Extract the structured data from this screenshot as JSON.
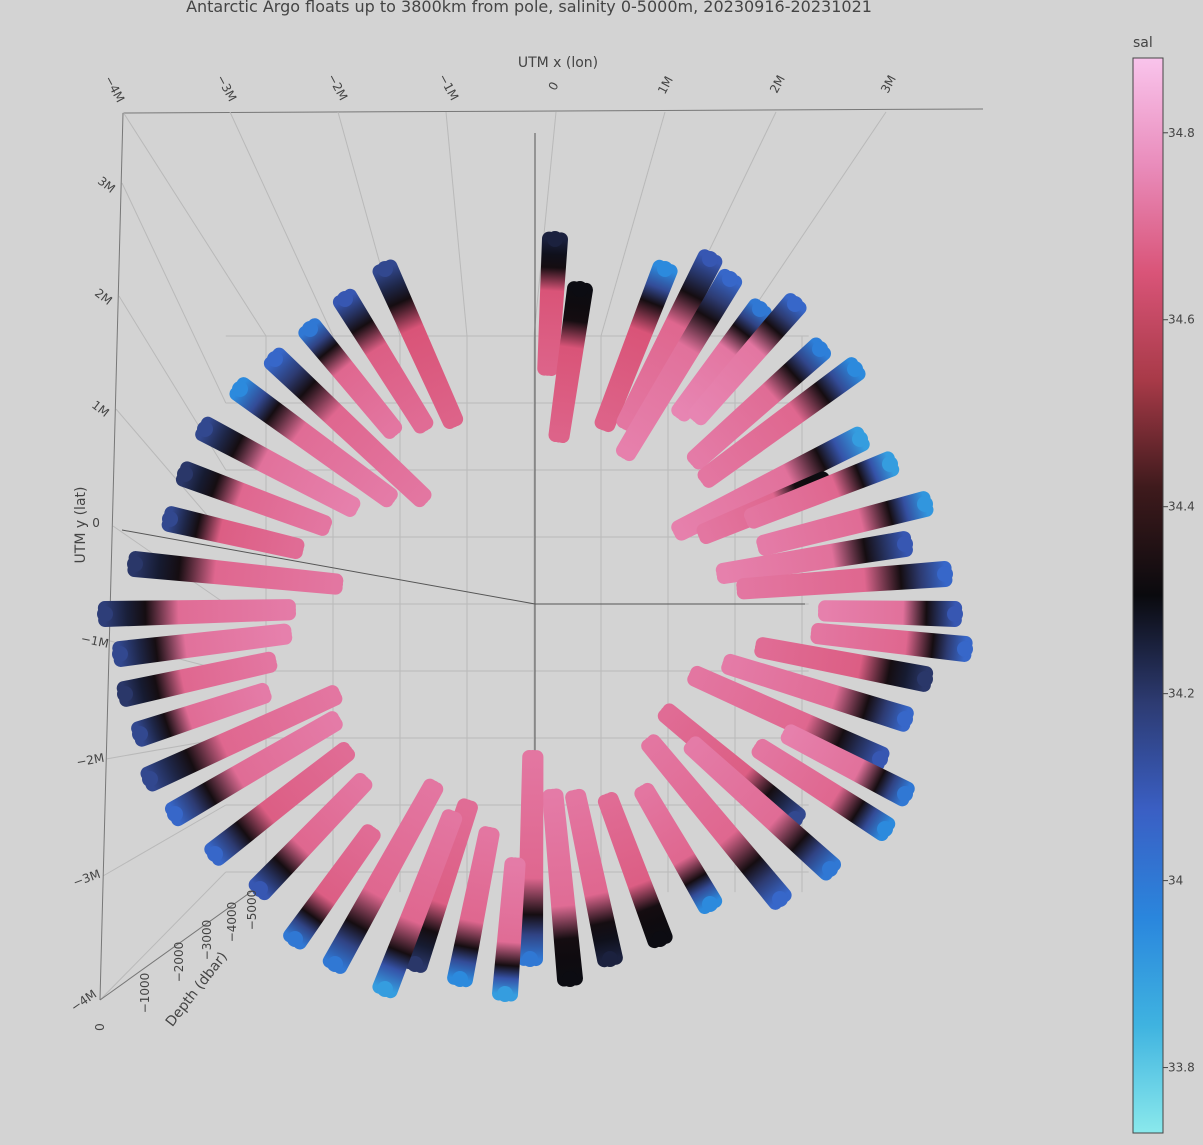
{
  "chart_data": {
    "type": "scatter3d",
    "title": "Antarctic Argo floats up to 3800km from pole, salinity 0-5000m, 20230916-20231021",
    "xlabel": "UTM x (lon)",
    "ylabel": "UTM y (lat)",
    "zlabel": "Depth (dbar)",
    "x_ticks": [
      "−4M",
      "−3M",
      "−2M",
      "−1M",
      "0",
      "1M",
      "2M",
      "3M"
    ],
    "y_ticks": [
      "3M",
      "2M",
      "1M",
      "0",
      "−1M",
      "−2M",
      "−3M",
      "−4M"
    ],
    "z_ticks": [
      "0",
      "−1000",
      "−2000",
      "−3000",
      "−4000",
      "−5000"
    ],
    "colorbar": {
      "title": "sal",
      "range": [
        33.73,
        34.88
      ],
      "ticks": [
        33.8,
        34,
        34.2,
        34.4,
        34.6,
        34.8
      ],
      "tick_labels": [
        "33.8",
        "34",
        "34.2",
        "34.4",
        "34.6",
        "34.8"
      ],
      "colorscale": [
        "#8ae9ec",
        "#3fb3e0",
        "#2a86dd",
        "#3a5fc4",
        "#2d3b72",
        "#0a0a0e",
        "#3e1a1c",
        "#a83a48",
        "#d95478",
        "#e98cbb",
        "#f9c4ec"
      ]
    },
    "ring_floats": [
      {
        "x": 0.2,
        "y": 3.65,
        "top": 34.25,
        "deep": 34.68
      },
      {
        "x": 0.45,
        "y": 3.15,
        "top": 34.3,
        "deep": 34.68
      },
      {
        "x": 1.3,
        "y": 3.35,
        "top": 33.95,
        "deep": 34.68
      },
      {
        "x": 1.75,
        "y": 3.45,
        "top": 34.1,
        "deep": 34.72
      },
      {
        "x": 1.95,
        "y": 3.25,
        "top": 34.05,
        "deep": 34.74
      },
      {
        "x": 2.25,
        "y": 2.95,
        "top": 34.0,
        "deep": 34.75
      },
      {
        "x": 2.6,
        "y": 3.0,
        "top": 34.05,
        "deep": 34.75
      },
      {
        "x": 2.85,
        "y": 2.55,
        "top": 33.98,
        "deep": 34.73
      },
      {
        "x": 3.2,
        "y": 2.35,
        "top": 33.95,
        "deep": 34.72
      },
      {
        "x": 3.25,
        "y": 1.65,
        "top": 33.9,
        "deep": 34.74
      },
      {
        "x": 2.9,
        "y": 1.2,
        "top": 34.3,
        "deep": 34.72
      },
      {
        "x": 3.55,
        "y": 1.4,
        "top": 33.9,
        "deep": 34.72
      },
      {
        "x": 3.9,
        "y": 1.0,
        "top": 33.92,
        "deep": 34.73
      },
      {
        "x": 3.7,
        "y": 0.6,
        "top": 34.1,
        "deep": 34.74
      },
      {
        "x": 4.1,
        "y": 0.3,
        "top": 34.05,
        "deep": 34.72
      },
      {
        "x": 4.2,
        "y": -0.1,
        "top": 34.1,
        "deep": 34.74
      },
      {
        "x": 4.3,
        "y": -0.45,
        "top": 34.05,
        "deep": 34.72
      },
      {
        "x": 3.9,
        "y": -0.75,
        "top": 34.2,
        "deep": 34.7
      },
      {
        "x": 3.7,
        "y": -1.15,
        "top": 34.05,
        "deep": 34.73
      },
      {
        "x": 3.45,
        "y": -1.55,
        "top": 34.1,
        "deep": 34.72
      },
      {
        "x": 3.7,
        "y": -1.9,
        "top": 34.0,
        "deep": 34.74
      },
      {
        "x": 3.5,
        "y": -2.25,
        "top": 33.95,
        "deep": 34.72
      },
      {
        "x": 2.6,
        "y": -2.15,
        "top": 34.15,
        "deep": 34.7
      },
      {
        "x": 2.95,
        "y": -2.65,
        "top": 34.0,
        "deep": 34.73
      },
      {
        "x": 2.45,
        "y": -2.95,
        "top": 34.05,
        "deep": 34.72
      },
      {
        "x": 1.75,
        "y": -3.0,
        "top": 33.95,
        "deep": 34.72
      },
      {
        "x": 1.25,
        "y": -3.35,
        "top": 34.3,
        "deep": 34.7
      },
      {
        "x": 0.75,
        "y": -3.55,
        "top": 34.25,
        "deep": 34.72
      },
      {
        "x": 0.35,
        "y": -3.75,
        "top": 34.3,
        "deep": 34.73
      },
      {
        "x": -0.05,
        "y": -3.55,
        "top": 34.0,
        "deep": 34.72
      },
      {
        "x": -0.3,
        "y": -3.9,
        "top": 33.9,
        "deep": 34.73
      },
      {
        "x": -0.75,
        "y": -3.75,
        "top": 33.95,
        "deep": 34.72
      },
      {
        "x": -1.2,
        "y": -3.6,
        "top": 34.2,
        "deep": 34.7
      },
      {
        "x": -1.5,
        "y": -3.85,
        "top": 33.9,
        "deep": 34.72
      },
      {
        "x": -2.0,
        "y": -3.6,
        "top": 34.0,
        "deep": 34.72
      },
      {
        "x": -2.4,
        "y": -3.35,
        "top": 34.0,
        "deep": 34.7
      },
      {
        "x": -2.75,
        "y": -2.85,
        "top": 34.1,
        "deep": 34.72
      },
      {
        "x": -3.2,
        "y": -2.5,
        "top": 34.05,
        "deep": 34.7
      },
      {
        "x": -3.6,
        "y": -2.1,
        "top": 34.05,
        "deep": 34.73
      },
      {
        "x": -3.85,
        "y": -1.75,
        "top": 34.15,
        "deep": 34.72
      },
      {
        "x": -3.95,
        "y": -1.3,
        "top": 34.15,
        "deep": 34.73
      },
      {
        "x": -4.1,
        "y": -0.9,
        "top": 34.2,
        "deep": 34.72
      },
      {
        "x": -4.15,
        "y": -0.5,
        "top": 34.15,
        "deep": 34.74
      },
      {
        "x": -4.3,
        "y": -0.1,
        "top": 34.18,
        "deep": 34.73
      },
      {
        "x": -4.0,
        "y": 0.4,
        "top": 34.2,
        "deep": 34.72
      },
      {
        "x": -3.65,
        "y": 0.85,
        "top": 34.15,
        "deep": 34.7
      },
      {
        "x": -3.5,
        "y": 1.3,
        "top": 34.2,
        "deep": 34.72
      },
      {
        "x": -3.3,
        "y": 1.75,
        "top": 34.15,
        "deep": 34.74
      },
      {
        "x": -2.95,
        "y": 2.15,
        "top": 33.95,
        "deep": 34.73
      },
      {
        "x": -2.6,
        "y": 2.45,
        "top": 34.05,
        "deep": 34.72
      },
      {
        "x": -2.25,
        "y": 2.75,
        "top": 34.0,
        "deep": 34.72
      },
      {
        "x": -1.9,
        "y": 3.05,
        "top": 34.1,
        "deep": 34.7
      },
      {
        "x": -1.5,
        "y": 3.35,
        "top": 34.15,
        "deep": 34.68
      }
    ]
  }
}
